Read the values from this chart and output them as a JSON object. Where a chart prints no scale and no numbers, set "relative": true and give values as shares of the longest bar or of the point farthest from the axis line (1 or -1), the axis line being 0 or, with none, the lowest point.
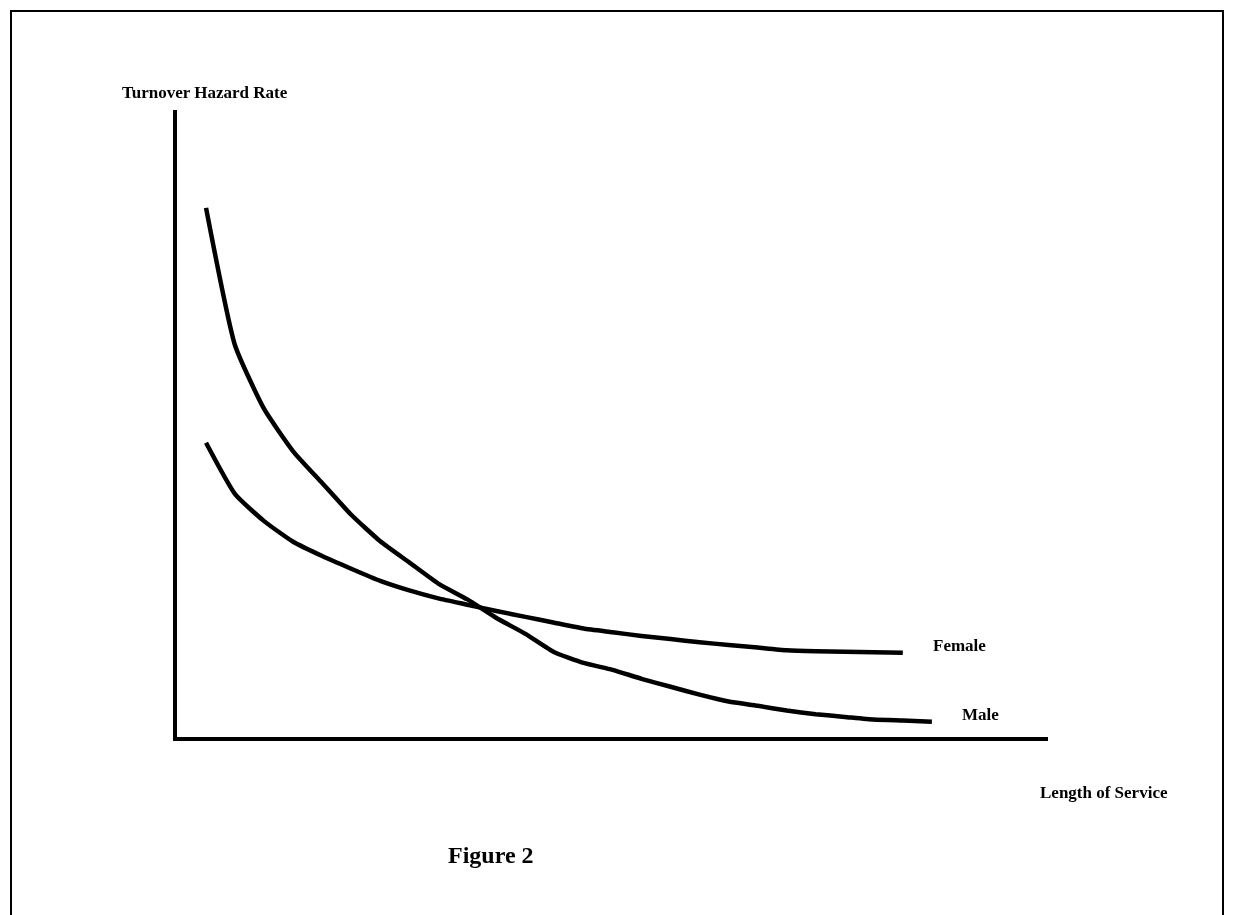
{
  "chart_data": {
    "type": "line",
    "relative": true,
    "xlabel": "Length of Service",
    "annotations": [
      "Turnover Hazard Rate",
      "Figure 2"
    ],
    "legend": false,
    "grid": false,
    "marker": "none",
    "line_style": "solid",
    "categories": [
      null,
      null,
      null,
      null,
      null,
      null,
      null,
      null,
      null,
      null,
      null,
      null,
      null,
      null,
      null,
      null,
      null,
      null,
      null,
      null,
      null,
      null,
      null,
      null,
      null,
      null,
      null,
      null,
      null,
      null,
      null
    ],
    "series": [
      {
        "name": "Female",
        "color": "#000000",
        "values": [
          null,
          0.556,
          0.459,
          0.408,
          0.369,
          0.342,
          0.318,
          0.295,
          0.277,
          0.262,
          0.25,
          0.238,
          0.227,
          0.216,
          0.205,
          0.198,
          0.191,
          0.185,
          0.179,
          0.174,
          0.169,
          0.164,
          0.162,
          0.161,
          0.16,
          0.159,
          null,
          null,
          null,
          null,
          null
        ]
      },
      {
        "name": "Male",
        "color": "#000000",
        "values": [
          null,
          1,
          0.74,
          0.62,
          0.54,
          0.48,
          0.42,
          0.37,
          0.33,
          0.29,
          0.26,
          0.225,
          0.195,
          0.16,
          0.14,
          0.127,
          0.11,
          0.095,
          0.08,
          0.067,
          0.059,
          0.05,
          0.043,
          0.038,
          0.033,
          0.031,
          0.029,
          null,
          null,
          null,
          null
        ]
      }
    ]
  }
}
